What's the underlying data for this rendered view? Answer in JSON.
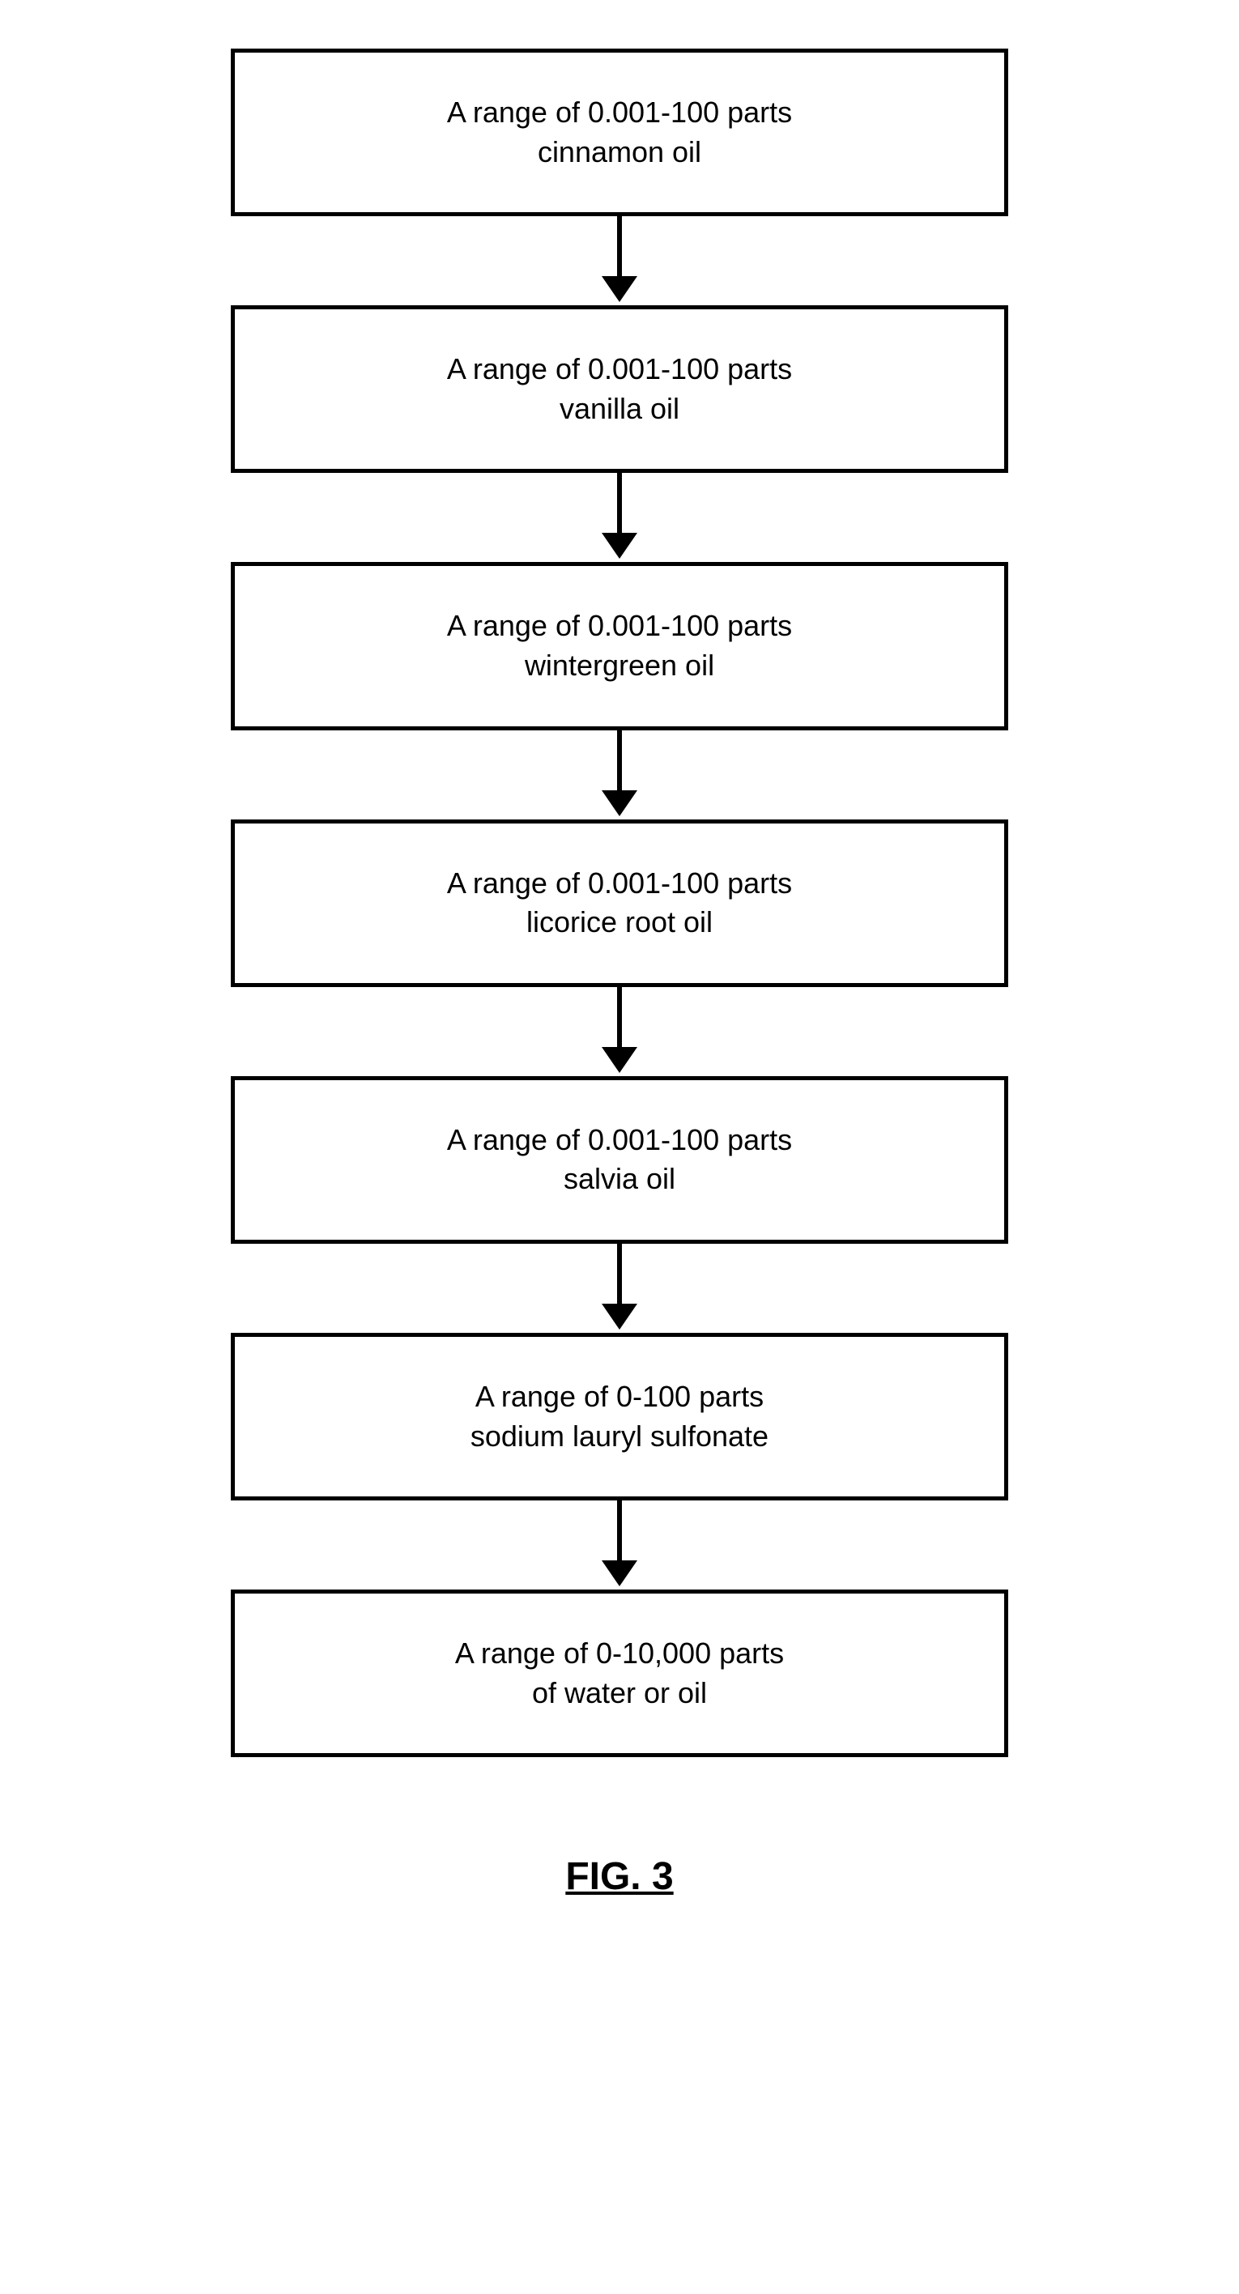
{
  "flowchart": {
    "type": "flowchart",
    "direction": "vertical",
    "box_border_width": 5,
    "box_border_color": "#000000",
    "box_background": "#ffffff",
    "box_font_size": 36,
    "arrow_color": "#000000",
    "arrow_line_width": 6,
    "arrow_head_size": 32,
    "nodes": [
      {
        "line1": "A range of 0.001-100 parts",
        "line2": "cinnamon oil"
      },
      {
        "line1": "A range of 0.001-100 parts",
        "line2": "vanilla oil"
      },
      {
        "line1": "A range of 0.001-100 parts",
        "line2": "wintergreen oil"
      },
      {
        "line1": "A range of 0.001-100 parts",
        "line2": "licorice root oil"
      },
      {
        "line1": "A range of 0.001-100 parts",
        "line2": "salvia oil"
      },
      {
        "line1": "A range of 0-100 parts",
        "line2": "sodium lauryl sulfonate"
      },
      {
        "line1": "A range of 0-10,000 parts",
        "line2": "of water or oil"
      }
    ]
  },
  "figure_label": "FIG. 3",
  "background_color": "#ffffff",
  "text_color": "#000000"
}
